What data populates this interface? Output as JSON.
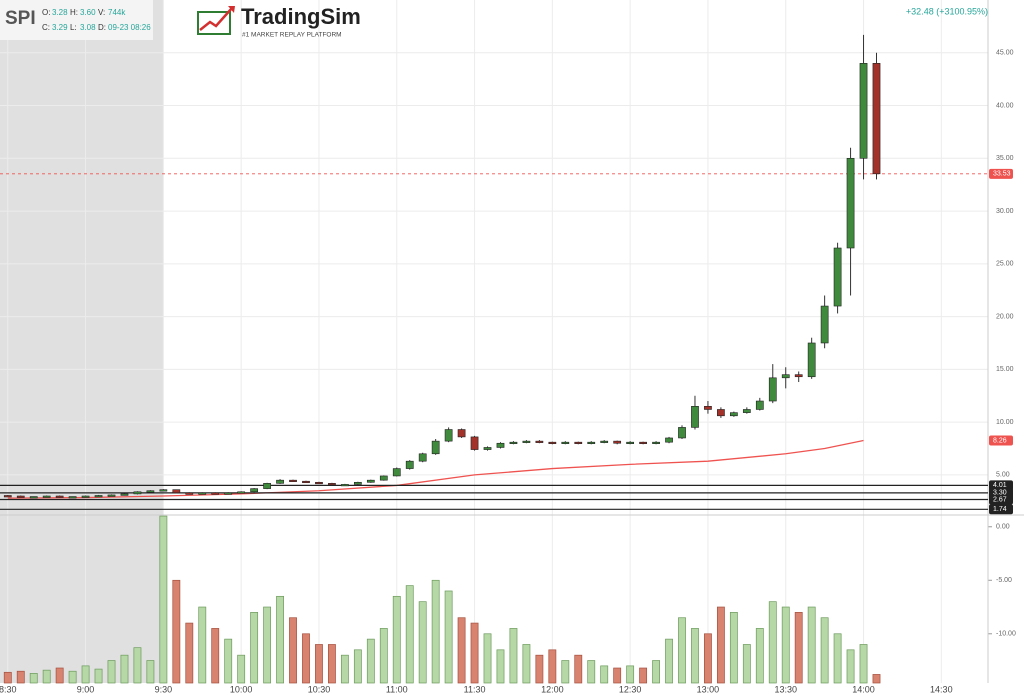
{
  "header": {
    "symbol": "SPI",
    "fields": [
      {
        "label": "O:",
        "value": "3.28"
      },
      {
        "label": "H:",
        "value": "3.60"
      },
      {
        "label": "V:",
        "value": "744k"
      },
      {
        "label": "C:",
        "value": "3.29"
      },
      {
        "label": "L:",
        "value": "3.08"
      },
      {
        "label": "D:",
        "value": "09-23 08:26"
      }
    ]
  },
  "logo": {
    "name": "TradingSim",
    "tagline": "#1 MARKET REPLAY PLATFORM"
  },
  "change": "+32.48 (+3100.95%)",
  "chart_data": {
    "type": "candlestick",
    "x": [
      510,
      515,
      520,
      525,
      530,
      535,
      540,
      545,
      550,
      555,
      560,
      565,
      570,
      575,
      580,
      585,
      590,
      595,
      600,
      605,
      610,
      615,
      620,
      625,
      630,
      635,
      640,
      645,
      650,
      655,
      660,
      665,
      670,
      675,
      680,
      685,
      690,
      695,
      700,
      705,
      710,
      715,
      720,
      725,
      730,
      735,
      740,
      745,
      750,
      755,
      760,
      765,
      770,
      775,
      780,
      785,
      790,
      795,
      800,
      805,
      810,
      815,
      820,
      825,
      830,
      835,
      840,
      845
    ],
    "open": [
      3.05,
      3.0,
      2.9,
      2.95,
      3.0,
      2.9,
      2.95,
      3.0,
      3.05,
      3.1,
      3.2,
      3.4,
      3.5,
      3.6,
      3.3,
      3.2,
      3.3,
      3.25,
      3.3,
      3.4,
      3.7,
      4.2,
      4.5,
      4.4,
      4.3,
      4.2,
      4.1,
      4.1,
      4.3,
      4.5,
      4.9,
      5.6,
      6.3,
      7.0,
      8.2,
      9.3,
      8.6,
      7.4,
      7.6,
      8.0,
      8.1,
      8.2,
      8.1,
      8.0,
      8.1,
      8.0,
      8.1,
      8.2,
      8.0,
      8.1,
      8.0,
      8.1,
      8.5,
      9.5,
      11.5,
      11.2,
      10.6,
      10.9,
      11.2,
      12.0,
      14.2,
      14.5,
      14.3,
      17.5,
      21.0,
      26.5,
      35.0,
      44.0
    ],
    "high": [
      3.1,
      3.05,
      2.95,
      3.05,
      3.05,
      2.95,
      3.05,
      3.1,
      3.15,
      3.25,
      3.45,
      3.55,
      3.65,
      3.6,
      3.35,
      3.35,
      3.35,
      3.35,
      3.45,
      3.75,
      4.25,
      4.6,
      4.55,
      4.45,
      4.35,
      4.25,
      4.15,
      4.35,
      4.55,
      4.95,
      5.7,
      6.4,
      7.1,
      8.4,
      9.5,
      9.4,
      8.7,
      7.7,
      8.1,
      8.2,
      8.3,
      8.3,
      8.15,
      8.2,
      8.15,
      8.2,
      8.3,
      8.25,
      8.2,
      8.15,
      8.2,
      8.6,
      9.7,
      12.5,
      12.0,
      11.4,
      11.0,
      11.4,
      12.3,
      15.5,
      15.2,
      14.8,
      18.0,
      22.0,
      27.0,
      36.0,
      46.7,
      45.0
    ],
    "low": [
      2.95,
      2.85,
      2.85,
      2.9,
      2.85,
      2.85,
      2.9,
      2.95,
      3.0,
      3.05,
      3.15,
      3.35,
      3.45,
      3.25,
      3.15,
      3.15,
      3.2,
      3.2,
      3.25,
      3.35,
      3.65,
      4.15,
      4.35,
      4.25,
      4.15,
      4.05,
      4.05,
      4.05,
      4.25,
      4.45,
      4.85,
      5.5,
      6.2,
      6.9,
      8.1,
      8.5,
      7.3,
      7.3,
      7.5,
      7.9,
      8.0,
      8.0,
      7.9,
      7.9,
      7.9,
      7.9,
      8.0,
      7.9,
      7.9,
      7.9,
      7.9,
      8.0,
      8.4,
      9.3,
      10.8,
      10.4,
      10.5,
      10.8,
      11.1,
      11.8,
      13.2,
      13.8,
      14.1,
      17.0,
      20.3,
      22.0,
      33.0,
      33.0
    ],
    "close": [
      3.0,
      2.9,
      2.95,
      3.0,
      2.9,
      2.95,
      3.0,
      3.05,
      3.1,
      3.2,
      3.4,
      3.5,
      3.6,
      3.3,
      3.2,
      3.3,
      3.25,
      3.3,
      3.4,
      3.7,
      4.2,
      4.5,
      4.4,
      4.3,
      4.2,
      4.1,
      4.1,
      4.3,
      4.5,
      4.9,
      5.6,
      6.3,
      7.0,
      8.2,
      9.3,
      8.6,
      7.4,
      7.6,
      8.0,
      8.1,
      8.2,
      8.1,
      8.0,
      8.1,
      8.0,
      8.1,
      8.2,
      8.0,
      8.1,
      8.0,
      8.1,
      8.5,
      9.5,
      11.5,
      11.2,
      10.6,
      10.9,
      11.2,
      12.0,
      14.2,
      14.5,
      14.3,
      17.5,
      21.0,
      26.5,
      35.0,
      44.0,
      33.53
    ],
    "up_color": "#3f8a3c",
    "down_color": "#a3322a",
    "moving_average": {
      "color": "#ef5350",
      "x": [
        510,
        540,
        570,
        600,
        630,
        660,
        690,
        720,
        750,
        780,
        810,
        825,
        840
      ],
      "values": [
        2.8,
        2.85,
        3.0,
        3.2,
        3.5,
        4.0,
        5.0,
        5.6,
        6.0,
        6.3,
        7.0,
        7.5,
        8.26
      ]
    },
    "xlim": [
      507,
      888
    ],
    "xticks": [
      {
        "value": 510,
        "label": "8:30"
      },
      {
        "value": 540,
        "label": "9:00"
      },
      {
        "value": 570,
        "label": "9:30"
      },
      {
        "value": 600,
        "label": "10:00"
      },
      {
        "value": 630,
        "label": "10:30"
      },
      {
        "value": 660,
        "label": "11:00"
      },
      {
        "value": 690,
        "label": "11:30"
      },
      {
        "value": 720,
        "label": "12:00"
      },
      {
        "value": 750,
        "label": "12:30"
      },
      {
        "value": 780,
        "label": "13:00"
      },
      {
        "value": 810,
        "label": "13:30"
      },
      {
        "value": 840,
        "label": "14:00"
      },
      {
        "value": 870,
        "label": "14:30"
      }
    ],
    "ylim": [
      1.2,
      50
    ],
    "yticks": [
      {
        "value": 5,
        "label": "5.00"
      },
      {
        "value": 10,
        "label": "10.00"
      },
      {
        "value": 15,
        "label": "15.00"
      },
      {
        "value": 20,
        "label": "20.00"
      },
      {
        "value": 25,
        "label": "25.00"
      },
      {
        "value": 30,
        "label": "30.00"
      },
      {
        "value": 35,
        "label": "35.00"
      },
      {
        "value": 40,
        "label": "40.00"
      },
      {
        "value": 45,
        "label": "45.00"
      }
    ],
    "grid": true,
    "shade_xlim": [
      507,
      570
    ],
    "shade_color": "#e0e0e0",
    "price_labels": [
      {
        "value": 33.53,
        "label": "33.53",
        "color": "#ef5350",
        "style": "dashed"
      },
      {
        "value": 8.26,
        "label": "8.26",
        "color": "#ef5350",
        "style": "none"
      },
      {
        "value": 4.01,
        "label": "4.01",
        "color": "#222222",
        "style": "solid"
      },
      {
        "value": 3.3,
        "label": "3.30",
        "color": "#222222",
        "style": "solid"
      },
      {
        "value": 2.67,
        "label": "2.67",
        "color": "#222222",
        "style": "solid"
      },
      {
        "value": 1.74,
        "label": "1.74",
        "color": "#222222",
        "style": "solid"
      }
    ],
    "volume": {
      "ylim": [
        -14.6,
        1.1
      ],
      "yticks": [
        {
          "value": 0,
          "label": "0.00"
        },
        {
          "value": -5,
          "label": "-5.00"
        },
        {
          "value": -10,
          "label": "-10.00"
        }
      ],
      "up_color": "#b6d8a6",
      "down_color": "#d8836f",
      "values": [
        -13.6,
        -13.5,
        -13.7,
        -13.4,
        -13.2,
        -13.5,
        -13.0,
        -13.3,
        -12.5,
        -12.0,
        -11.3,
        -12.5,
        1.0,
        -5.0,
        -9.0,
        -7.5,
        -9.5,
        -10.5,
        -12.0,
        -8.0,
        -7.5,
        -6.5,
        -8.5,
        -10.0,
        -11.0,
        -11.0,
        -12.0,
        -11.5,
        -10.5,
        -9.5,
        -6.5,
        -5.5,
        -7.0,
        -5.0,
        -6.0,
        -8.5,
        -9.0,
        -10.0,
        -11.5,
        -9.5,
        -11.0,
        -12.0,
        -11.5,
        -12.5,
        -12.0,
        -12.5,
        -13.0,
        -13.2,
        -13.0,
        -13.2,
        -12.5,
        -10.5,
        -8.5,
        -9.5,
        -10.0,
        -7.5,
        -8.0,
        -11.0,
        -9.5,
        -7.0,
        -7.5,
        -8.0,
        -7.5,
        -8.5,
        -10.0,
        -11.5,
        -11.0,
        -13.8
      ]
    }
  }
}
